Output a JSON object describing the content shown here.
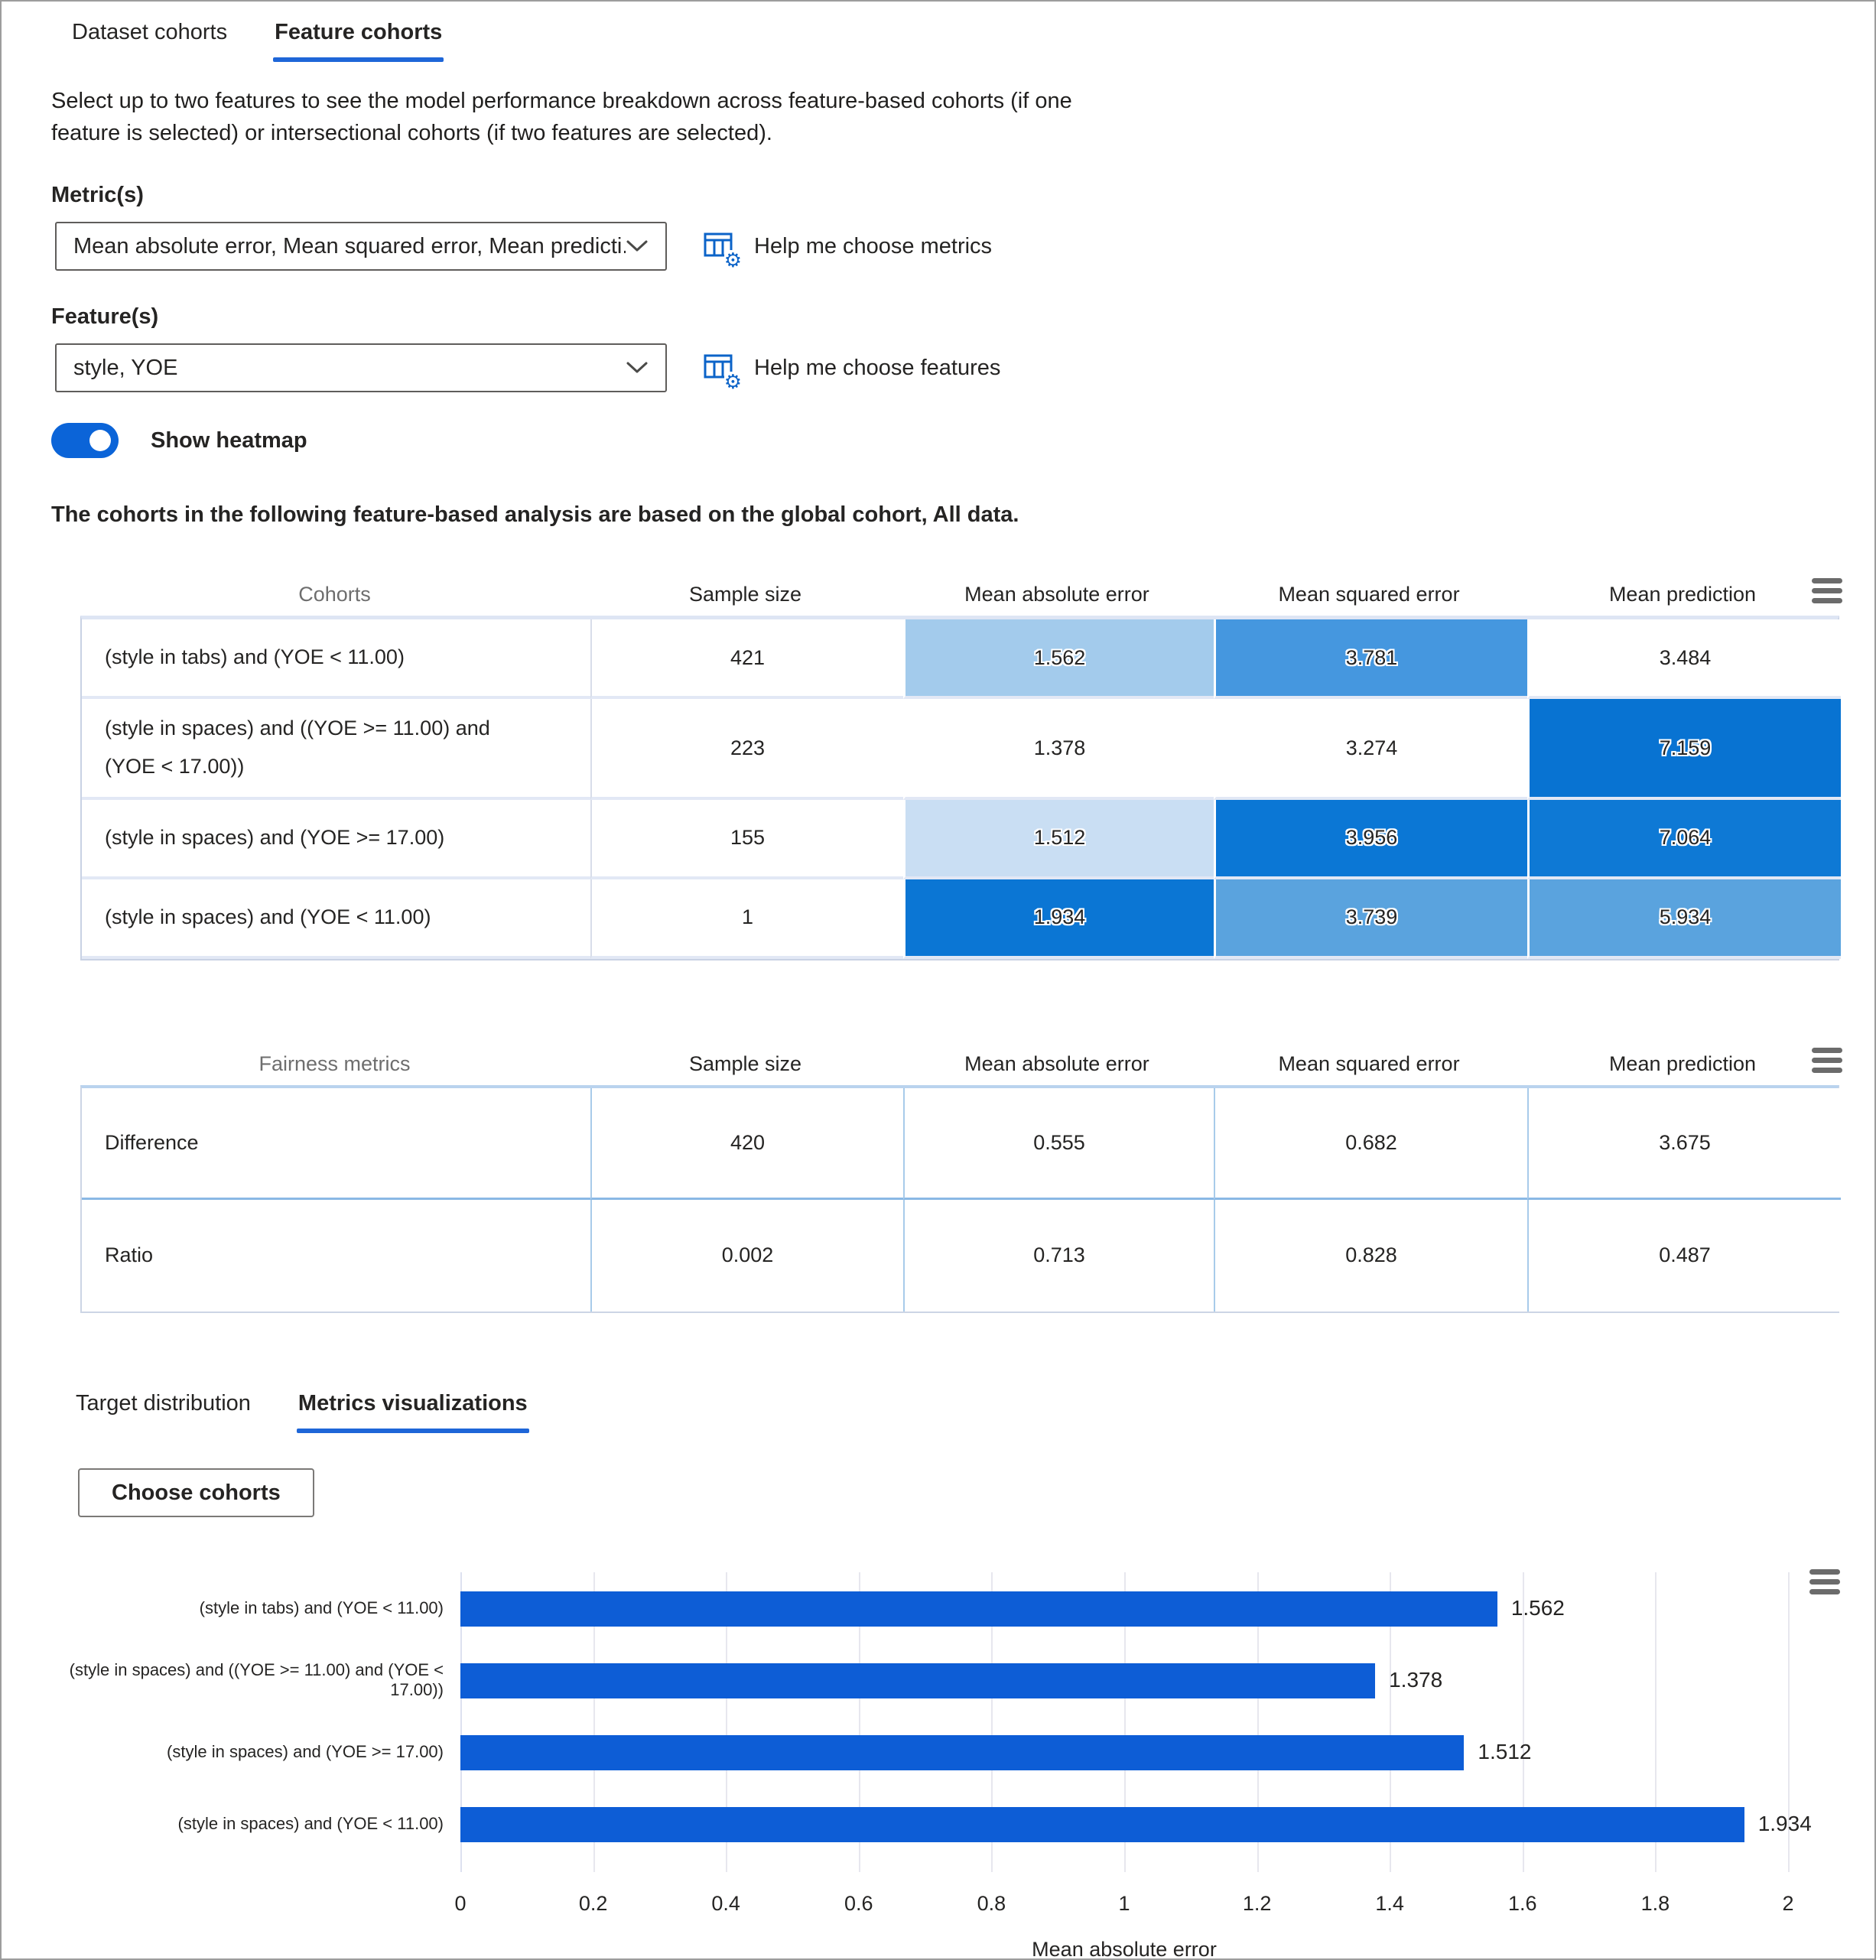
{
  "top_tabs": [
    {
      "label": "Dataset cohorts",
      "selected": false
    },
    {
      "label": "Feature cohorts",
      "selected": true
    }
  ],
  "description": "Select up to two features to see the model performance breakdown across feature-based cohorts (if one feature is selected) or intersectional cohorts (if two features are selected).",
  "metrics": {
    "label": "Metric(s)",
    "value": "Mean absolute error, Mean squared error, Mean predicti...",
    "help": "Help me choose metrics"
  },
  "features": {
    "label": "Feature(s)",
    "value": "style, YOE",
    "help": "Help me choose features"
  },
  "heatmap_toggle": {
    "label": "Show heatmap",
    "state": "on"
  },
  "note": "The cohorts in the following feature-based analysis are based on the global cohort, All data.",
  "cohort_table": {
    "columns": [
      "Cohorts",
      "Sample size",
      "Mean absolute error",
      "Mean squared error",
      "Mean prediction"
    ],
    "rows": [
      {
        "cohort": "(style in tabs) and (YOE < 11.00)",
        "sample_size": "421",
        "cells": [
          {
            "value": "1.562",
            "bg": "#a3cbec"
          },
          {
            "value": "3.781",
            "bg": "#4597df"
          },
          {
            "value": "3.484",
            "bg": "#ffffff"
          }
        ]
      },
      {
        "cohort": "(style in spaces) and ((YOE >= 11.00) and (YOE < 17.00))",
        "sample_size": "223",
        "cells": [
          {
            "value": "1.378",
            "bg": "#ffffff"
          },
          {
            "value": "3.274",
            "bg": "#ffffff"
          },
          {
            "value": "7.159",
            "bg": "#0873d2"
          }
        ]
      },
      {
        "cohort": "(style in spaces) and (YOE >= 17.00)",
        "sample_size": "155",
        "cells": [
          {
            "value": "1.512",
            "bg": "#c9def3"
          },
          {
            "value": "3.956",
            "bg": "#0b77d5"
          },
          {
            "value": "7.064",
            "bg": "#0e79d5"
          }
        ]
      },
      {
        "cohort": "(style in spaces) and (YOE < 11.00)",
        "sample_size": "1",
        "cells": [
          {
            "value": "1.934",
            "bg": "#0b76d4"
          },
          {
            "value": "3.739",
            "bg": "#5aa3de"
          },
          {
            "value": "5.934",
            "bg": "#5aa3de"
          }
        ]
      }
    ]
  },
  "fairness_table": {
    "columns": [
      "Fairness metrics",
      "Sample size",
      "Mean absolute error",
      "Mean squared error",
      "Mean prediction"
    ],
    "rows": [
      {
        "label": "Difference",
        "values": [
          "420",
          "0.555",
          "0.682",
          "3.675"
        ]
      },
      {
        "label": "Ratio",
        "values": [
          "0.002",
          "0.713",
          "0.828",
          "0.487"
        ]
      }
    ]
  },
  "bottom_tabs": [
    {
      "label": "Target distribution",
      "selected": false
    },
    {
      "label": "Metrics visualizations",
      "selected": true
    }
  ],
  "choose_cohorts_label": "Choose cohorts",
  "chart_data": {
    "type": "bar",
    "orientation": "horizontal",
    "categories": [
      "(style in tabs) and (YOE < 11.00)",
      "(style in spaces) and ((YOE >= 11.00) and (YOE < 17.00))",
      "(style in spaces) and (YOE >= 17.00)",
      "(style in spaces) and (YOE < 11.00)"
    ],
    "values": [
      1.562,
      1.378,
      1.512,
      1.934
    ],
    "value_labels": [
      "1.562",
      "1.378",
      "1.512",
      "1.934"
    ],
    "xlabel": "Mean absolute error",
    "xlim": [
      0,
      2
    ],
    "xticks": [
      0,
      0.2,
      0.4,
      0.6,
      0.8,
      1,
      1.2,
      1.4,
      1.6,
      1.8,
      2
    ],
    "xtick_labels": [
      "0",
      "0.2",
      "0.4",
      "0.6",
      "0.8",
      "1",
      "1.2",
      "1.4",
      "1.6",
      "1.8",
      "2"
    ],
    "grid": true,
    "legend": false,
    "bar_color": "#0d5dd6",
    "accent_color": "#1e66d8"
  }
}
